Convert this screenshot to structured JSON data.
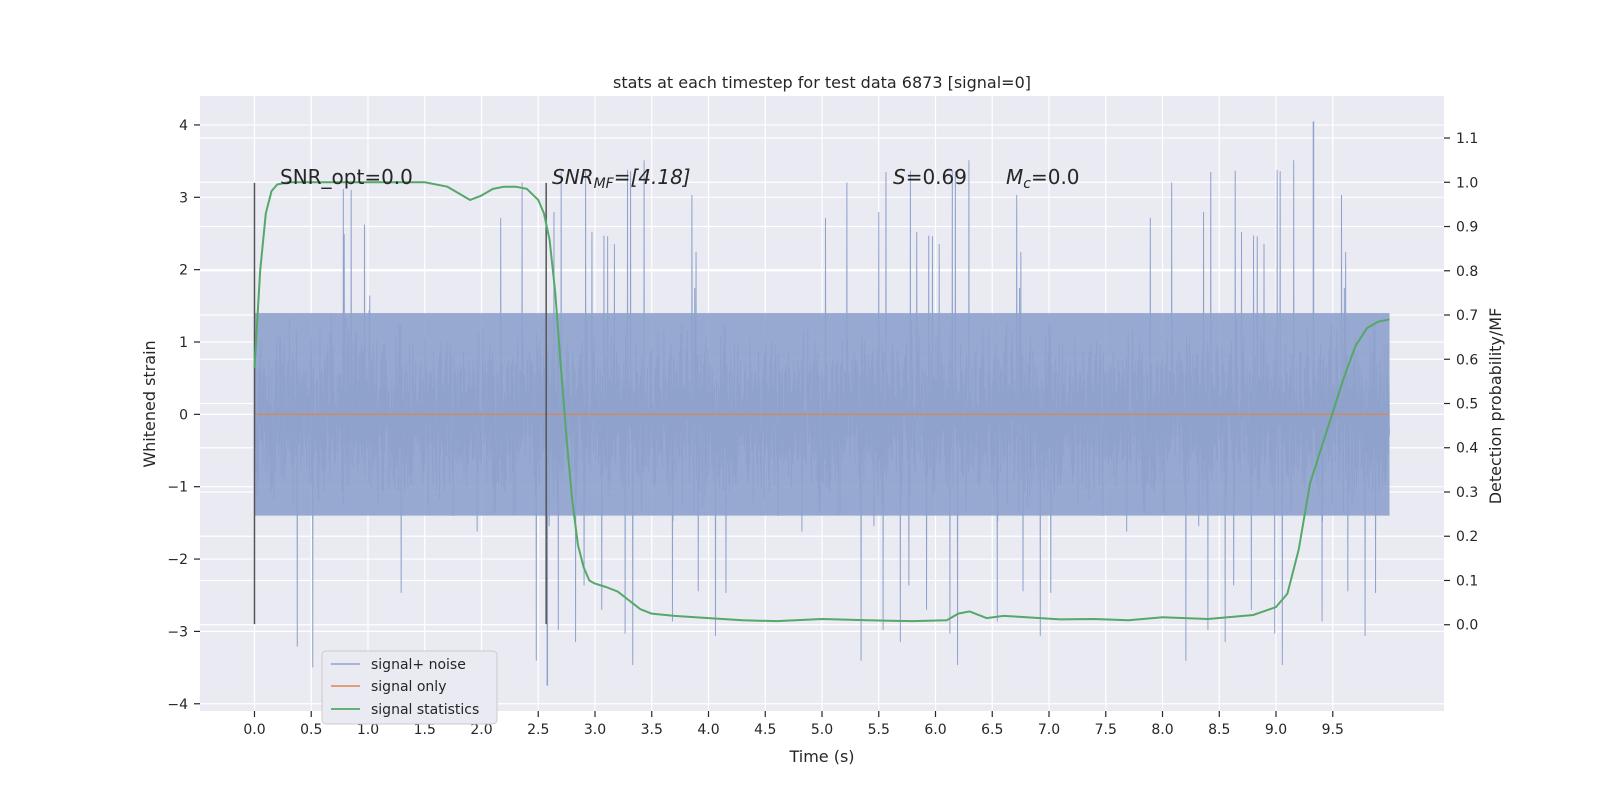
{
  "chart_data": {
    "type": "line",
    "title": "stats at each timestep for test data 6873 [signal=0]",
    "xlabel": "Time (s)",
    "ylabel": "Whitened strain",
    "y2label": "Detection probability/MF",
    "xlim": [
      -0.48,
      10.48
    ],
    "ylim": [
      -4.1,
      4.4
    ],
    "y2lim": [
      -0.195,
      1.195
    ],
    "xticks": [
      0.0,
      0.5,
      1.0,
      1.5,
      2.0,
      2.5,
      3.0,
      3.5,
      4.0,
      4.5,
      5.0,
      5.5,
      6.0,
      6.5,
      7.0,
      7.5,
      8.0,
      8.5,
      9.0,
      9.5
    ],
    "xtick_labels": [
      "0.0",
      "0.5",
      "1.0",
      "1.5",
      "2.0",
      "2.5",
      "3.0",
      "3.5",
      "4.0",
      "4.5",
      "5.0",
      "5.5",
      "6.0",
      "6.5",
      "7.0",
      "7.5",
      "8.0",
      "8.5",
      "9.0",
      "9.5"
    ],
    "yticks": [
      -4,
      -3,
      -2,
      -1,
      0,
      1,
      2,
      3,
      4
    ],
    "ytick_labels": [
      "−4",
      "−3",
      "−2",
      "−1",
      "0",
      "1",
      "2",
      "3",
      "4"
    ],
    "y2ticks": [
      0.0,
      0.1,
      0.2,
      0.3,
      0.4,
      0.5,
      0.6,
      0.7,
      0.8,
      0.9,
      1.0,
      1.1
    ],
    "y2tick_labels": [
      "0.0",
      "0.1",
      "0.2",
      "0.3",
      "0.4",
      "0.5",
      "0.6",
      "0.7",
      "0.8",
      "0.9",
      "1.0",
      "1.1"
    ],
    "grid": true,
    "legend_position": "lower-left",
    "series": [
      {
        "name": "signal+ noise",
        "color": "#8ea2cc",
        "x_range": [
          0.0,
          10.0
        ],
        "typical_range": [
          -1.4,
          1.4
        ],
        "extremes": [
          -3.75,
          4.05
        ]
      },
      {
        "name": "signal only",
        "color": "#dd8452",
        "x": [
          0.0,
          10.0
        ],
        "y": [
          0.0,
          0.0
        ]
      },
      {
        "name": "signal statistics",
        "color": "#55a868",
        "axis": "right",
        "x": [
          0.0,
          0.05,
          0.1,
          0.15,
          0.2,
          0.3,
          0.5,
          1.0,
          1.5,
          1.7,
          1.8,
          1.9,
          2.0,
          2.1,
          2.2,
          2.3,
          2.4,
          2.5,
          2.55,
          2.6,
          2.65,
          2.7,
          2.75,
          2.8,
          2.85,
          2.9,
          2.95,
          3.0,
          3.1,
          3.2,
          3.3,
          3.4,
          3.5,
          3.7,
          4.0,
          4.3,
          4.6,
          5.0,
          5.4,
          5.8,
          6.1,
          6.2,
          6.3,
          6.45,
          6.6,
          6.8,
          7.1,
          7.4,
          7.7,
          8.0,
          8.4,
          8.8,
          9.0,
          9.1,
          9.2,
          9.3,
          9.4,
          9.5,
          9.6,
          9.7,
          9.8,
          9.9,
          10.0
        ],
        "y": [
          0.58,
          0.8,
          0.93,
          0.98,
          0.995,
          1.0,
          1.0,
          1.0,
          1.0,
          0.99,
          0.975,
          0.96,
          0.97,
          0.985,
          0.99,
          0.99,
          0.985,
          0.96,
          0.93,
          0.87,
          0.75,
          0.58,
          0.42,
          0.28,
          0.18,
          0.13,
          0.1,
          0.093,
          0.085,
          0.075,
          0.055,
          0.035,
          0.025,
          0.02,
          0.015,
          0.01,
          0.008,
          0.013,
          0.01,
          0.008,
          0.01,
          0.025,
          0.03,
          0.015,
          0.02,
          0.017,
          0.012,
          0.013,
          0.01,
          0.017,
          0.013,
          0.022,
          0.04,
          0.07,
          0.17,
          0.32,
          0.4,
          0.48,
          0.56,
          0.63,
          0.67,
          0.685,
          0.69
        ]
      }
    ],
    "vlines": [
      0.0,
      2.57
    ],
    "vline_range": [
      -2.9,
      3.2
    ]
  },
  "annotations": {
    "snr_opt": "SNR_opt=0.0",
    "snr_mf_sym": "SNR",
    "snr_mf_sub": "MF",
    "snr_mf_val": "=[4.18]",
    "s_sym": "S",
    "s_val": "=0.69",
    "mc_sym": "M",
    "mc_sub": "c",
    "mc_val": "=0.0"
  }
}
